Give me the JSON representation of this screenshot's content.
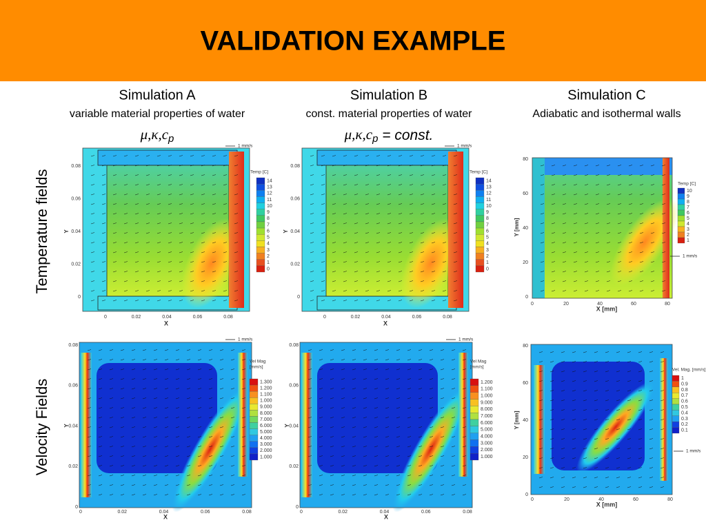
{
  "header": {
    "title": "VALIDATION EXAMPLE"
  },
  "columns": [
    {
      "title": "Simulation A",
      "subtitle": "variable material properties of water",
      "formula": {
        "main": "μ,κ,c",
        "sub": "p"
      }
    },
    {
      "title": "Simulation B",
      "subtitle": "const. material properties of water",
      "formula": {
        "main": "μ,κ,c",
        "sub": "p",
        "tail": " = const."
      }
    },
    {
      "title": "Simulation C",
      "subtitle": "Adiabatic and isothermal walls"
    }
  ],
  "row_labels": [
    "Temperature fields",
    "Velocity Fields"
  ],
  "plots": [
    {
      "kind": "temp",
      "xticks": [
        "0",
        "0.02",
        "0.04",
        "0.06",
        "0.08"
      ],
      "yticks": [
        "0.08",
        "0.06",
        "0.04",
        "0.02",
        "0"
      ],
      "xlabel": "X",
      "ylabel": "Y",
      "legend_title": [
        "Temp [C]"
      ],
      "legend_labels": [
        "14",
        "13",
        "12",
        "11",
        "10",
        "9",
        "8",
        "7",
        "6",
        "5",
        "4",
        "3",
        "2",
        "1",
        "0"
      ],
      "scale": "1 mm/s"
    },
    {
      "kind": "temp",
      "xticks": [
        "0",
        "0.02",
        "0.04",
        "0.06",
        "0.08"
      ],
      "yticks": [
        "0.08",
        "0.06",
        "0.04",
        "0.02",
        "0"
      ],
      "xlabel": "X",
      "ylabel": "Y",
      "legend_title": [
        "Temp [C]"
      ],
      "legend_labels": [
        "14",
        "13",
        "12",
        "11",
        "10",
        "9",
        "8",
        "7",
        "6",
        "5",
        "4",
        "3",
        "2",
        "1",
        "0"
      ],
      "scale": "1 mm/s"
    },
    {
      "kind": "tempC",
      "xticks": [
        "0",
        "20",
        "40",
        "60",
        "80"
      ],
      "yticks": [
        "80",
        "60",
        "40",
        "20",
        "0"
      ],
      "xlabel": "X [mm]",
      "ylabel": "Y [mm]",
      "legend_title": [
        "Temp [C]"
      ],
      "legend_labels": [
        "10",
        "9",
        "8",
        "7",
        "6",
        "5",
        "4",
        "3",
        "2",
        "1"
      ],
      "scale": "1 mm/s"
    },
    {
      "kind": "vel",
      "xticks": [
        "0",
        "0.02",
        "0.04",
        "0.06",
        "0.08"
      ],
      "yticks": [
        "0.08",
        "0.06",
        "0.04",
        "0.02",
        "0"
      ],
      "xlabel": "X",
      "ylabel": "Y",
      "legend_title": [
        "Vel Mag",
        "[mm/s]"
      ],
      "legend_labels": [
        "1.300",
        "1.200",
        "1.100",
        "1.000",
        "9.000",
        "8.000",
        "7.000",
        "6.000",
        "5.000",
        "4.000",
        "3.000",
        "2.000",
        "1.000"
      ],
      "scale": "1 mm/s"
    },
    {
      "kind": "vel",
      "xticks": [
        "0",
        "0.02",
        "0.04",
        "0.06",
        "0.08"
      ],
      "yticks": [
        "0.08",
        "0.06",
        "0.04",
        "0.02",
        "0"
      ],
      "xlabel": "X",
      "ylabel": "Y",
      "legend_title": [
        "Vel Mag",
        "[mm/s]"
      ],
      "legend_labels": [
        "1.200",
        "1.100",
        "1.000",
        "9.000",
        "8.000",
        "7.000",
        "6.000",
        "5.000",
        "4.000",
        "3.000",
        "2.000",
        "1.000"
      ],
      "scale": "1 mm/s"
    },
    {
      "kind": "velC",
      "xticks": [
        "0",
        "20",
        "40",
        "60",
        "80"
      ],
      "yticks": [
        "80",
        "60",
        "40",
        "20",
        "0"
      ],
      "xlabel": "X [mm]",
      "ylabel": "Y [mm]",
      "legend_title": [
        "Vel. Mag. [mm/s]"
      ],
      "legend_labels": [
        "1",
        "0.9",
        "0.8",
        "0.7",
        "0.6",
        "0.5",
        "0.4",
        "0.3",
        "0.2",
        "0.1"
      ],
      "scale": "1 mm/s"
    }
  ]
}
